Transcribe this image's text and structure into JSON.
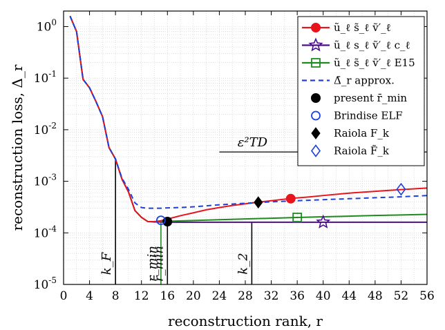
{
  "chart_data": {
    "type": "line",
    "xlabel": "reconstruction rank, r",
    "ylabel": "reconstruction loss, Δ_r",
    "xlim": [
      0,
      56
    ],
    "ylim": [
      1e-05,
      2
    ],
    "yscale": "log",
    "grid": true,
    "legend_position": "top-right",
    "x_ticks": [
      0,
      4,
      8,
      12,
      16,
      20,
      24,
      28,
      32,
      36,
      40,
      44,
      48,
      52,
      56
    ],
    "x_tick_labels": [
      "0",
      "4",
      "8",
      "12",
      "16",
      "20",
      "24",
      "28",
      "32",
      "36",
      "40",
      "44",
      "48",
      "52",
      "56"
    ],
    "y_ticks": [
      1e-05,
      0.0001,
      0.001,
      0.01,
      0.1,
      1
    ],
    "y_tick_labels": [
      {
        "base": "10",
        "exp": "-5"
      },
      {
        "base": "10",
        "exp": "-4"
      },
      {
        "base": "10",
        "exp": "-3"
      },
      {
        "base": "10",
        "exp": "-2"
      },
      {
        "base": "10",
        "exp": "-1"
      },
      {
        "base": "10",
        "exp": "0"
      }
    ],
    "series": [
      {
        "name": "ũ_ℓ s̃_ℓ ṽ′_ℓ",
        "color": "#e8141c",
        "style": "solid",
        "marker": "circle-filled",
        "x": [
          1,
          2,
          3,
          4,
          5,
          6,
          7,
          8,
          9,
          10,
          11,
          12,
          13,
          14,
          15,
          16,
          18,
          20,
          22,
          24,
          26,
          28,
          30,
          32,
          35,
          38,
          40,
          44,
          48,
          52,
          56
        ],
        "y": [
          1.6,
          0.8,
          0.095,
          0.065,
          0.035,
          0.018,
          0.0045,
          0.0027,
          0.0011,
          0.00062,
          0.00027,
          0.0002,
          0.000165,
          0.000165,
          0.000172,
          0.000185,
          0.000215,
          0.000245,
          0.00028,
          0.00031,
          0.00034,
          0.000365,
          0.000395,
          0.00042,
          0.000465,
          0.0005,
          0.00053,
          0.00059,
          0.00064,
          0.00069,
          0.00074
        ]
      },
      {
        "name": "ũ_ℓ s_ℓ ṽ′_ℓ c_ℓ",
        "color": "#4b0f8c",
        "style": "solid",
        "marker": "star-open",
        "x": [
          1,
          2,
          3,
          4,
          5,
          6,
          7,
          8,
          9,
          10,
          11,
          12,
          13,
          14,
          15,
          16,
          20,
          30,
          40,
          50,
          56
        ],
        "y": [
          1.6,
          0.8,
          0.095,
          0.065,
          0.035,
          0.018,
          0.0045,
          0.0027,
          0.0011,
          0.00062,
          0.00027,
          0.0002,
          0.000165,
          0.000163,
          0.000162,
          0.000161,
          0.000161,
          0.000161,
          0.000161,
          0.000161,
          0.000161
        ]
      },
      {
        "name": "ũ_ℓ s̃_ℓ ṽ′_ℓ E15",
        "color": "#1e8a1e",
        "style": "solid",
        "marker": "square-open",
        "x": [
          1,
          2,
          3,
          4,
          5,
          6,
          7,
          8,
          9,
          10,
          11,
          12,
          13,
          14,
          15,
          16,
          20,
          24,
          28,
          32,
          36,
          40,
          44,
          48,
          52,
          56
        ],
        "y": [
          1.6,
          0.8,
          0.095,
          0.065,
          0.035,
          0.018,
          0.0045,
          0.0027,
          0.0011,
          0.00062,
          0.00027,
          0.0002,
          0.000165,
          0.000165,
          0.000166,
          0.000168,
          0.000174,
          0.00018,
          0.000186,
          0.000192,
          0.000199,
          0.000205,
          0.000211,
          0.000217,
          0.000222,
          0.000228
        ]
      },
      {
        "name": "Δ̄_r approx.",
        "color": "#1c3fe0",
        "style": "dashed",
        "marker": "none",
        "x": [
          1,
          2,
          3,
          4,
          5,
          6,
          7,
          8,
          9,
          10,
          11,
          12,
          13,
          14,
          15,
          16,
          18,
          20,
          24,
          28,
          32,
          36,
          40,
          44,
          48,
          52,
          56
        ],
        "y": [
          1.6,
          0.8,
          0.095,
          0.065,
          0.035,
          0.018,
          0.0045,
          0.0027,
          0.00115,
          0.0007,
          0.00038,
          0.00031,
          0.0003,
          0.0003,
          0.0003,
          0.000305,
          0.00031,
          0.00032,
          0.00035,
          0.000375,
          0.0004,
          0.00042,
          0.00044,
          0.00046,
          0.00048,
          0.0005,
          0.00053
        ]
      }
    ],
    "markers": [
      {
        "series": 0,
        "x": 35,
        "y": 0.00046,
        "shape": "circle-filled",
        "color": "#e8141c"
      },
      {
        "series": 1,
        "x": 40,
        "y": 0.000161,
        "shape": "star-open",
        "color": "#4b0f8c"
      },
      {
        "series": 2,
        "x": 36,
        "y": 0.000199,
        "shape": "square-open",
        "color": "#1e8a1e"
      }
    ],
    "points": [
      {
        "name": "present r̄_min",
        "x": 16,
        "y": 0.000165,
        "shape": "circle-filled",
        "color": "#000000"
      },
      {
        "name": "Brindise ELF",
        "x": 15,
        "y": 0.000175,
        "shape": "circle-open",
        "color": "#1c3fe0"
      },
      {
        "name": "Raiola F_k",
        "x": 30,
        "y": 0.00039,
        "shape": "diamond-filled",
        "color": "#000000"
      },
      {
        "name": "Raiola F̃_k",
        "x": 52,
        "y": 0.0007,
        "shape": "diamond-open",
        "color": "#1c3fe0"
      }
    ],
    "threshold": {
      "label": "ε²TD",
      "y": 0.0037,
      "x_start": 24,
      "x_end": 56
    },
    "vlines": [
      {
        "label": "k_F",
        "x": 8,
        "y_top": 0.0027,
        "color": "#000000"
      },
      {
        "label": "r_min",
        "x": 15,
        "y_top": 0.000175,
        "color": "#1e8a1e"
      },
      {
        "label": "r̄_min",
        "x": 16,
        "y_top": 0.000165,
        "color": "#000000"
      },
      {
        "label": "k_2",
        "x": 29,
        "y_top": 0.000165,
        "color": "#000000"
      }
    ]
  }
}
